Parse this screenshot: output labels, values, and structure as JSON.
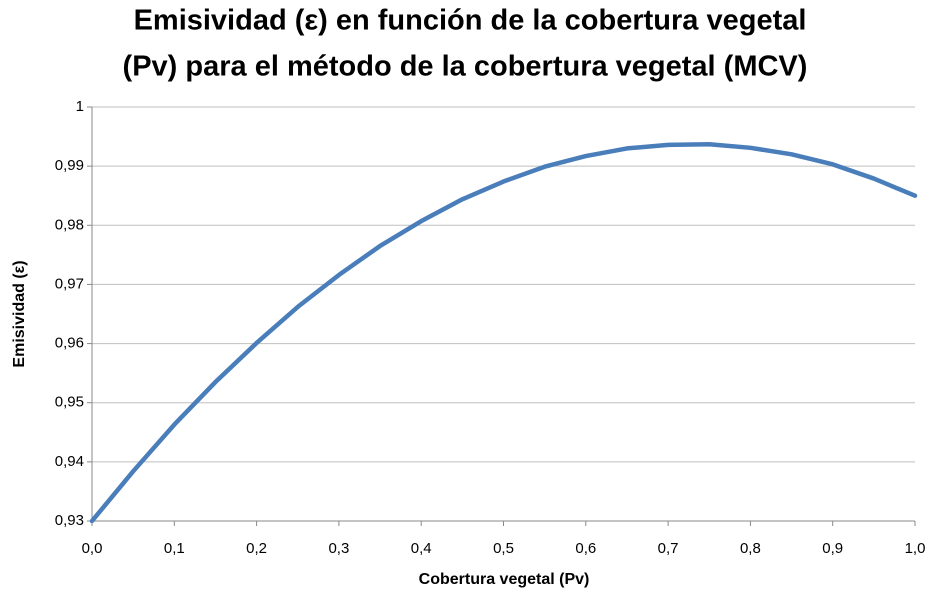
{
  "chart_data": {
    "type": "line",
    "title": [
      "Emisividad (ε) en función de la cobertura vegetal",
      "(Pv) para el método de la cobertura vegetal (MCV)"
    ],
    "xlabel": "Cobertura vegetal (Pv)",
    "ylabel": "Emisividad (ε)",
    "x": [
      0,
      0.05,
      0.1,
      0.15,
      0.2,
      0.25,
      0.3,
      0.35,
      0.4,
      0.45,
      0.5,
      0.55,
      0.6,
      0.65,
      0.7,
      0.75,
      0.8,
      0.85,
      0.9,
      0.95,
      1
    ],
    "series": [
      {
        "name": "Emisividad (ε)",
        "color": "#4a7ebb",
        "values": [
          0.93,
          0.9384,
          0.9463,
          0.9535,
          0.9601,
          0.9662,
          0.9716,
          0.9765,
          0.9807,
          0.9844,
          0.9874,
          0.9899,
          0.9917,
          0.993,
          0.9936,
          0.9937,
          0.9931,
          0.992,
          0.9903,
          0.9879,
          0.985
        ]
      }
    ],
    "xlim": [
      0,
      1
    ],
    "xticks": [
      {
        "value": 0,
        "label": "0,0"
      },
      {
        "value": 0.1,
        "label": "0,1"
      },
      {
        "value": 0.2,
        "label": "0,2"
      },
      {
        "value": 0.3,
        "label": "0,3"
      },
      {
        "value": 0.4,
        "label": "0,4"
      },
      {
        "value": 0.5,
        "label": "0,5"
      },
      {
        "value": 0.6,
        "label": "0,6"
      },
      {
        "value": 0.7,
        "label": "0,7"
      },
      {
        "value": 0.8,
        "label": "0,8"
      },
      {
        "value": 0.9,
        "label": "0,9"
      },
      {
        "value": 1,
        "label": "1,0"
      }
    ],
    "ylim": [
      0.93,
      1
    ],
    "yticks": [
      {
        "value": 0.93,
        "label": "0,93"
      },
      {
        "value": 0.94,
        "label": "0,94"
      },
      {
        "value": 0.95,
        "label": "0,95"
      },
      {
        "value": 0.96,
        "label": "0,96"
      },
      {
        "value": 0.97,
        "label": "0,97"
      },
      {
        "value": 0.98,
        "label": "0,98"
      },
      {
        "value": 0.99,
        "label": "0,99"
      },
      1
    ],
    "grid": true
  }
}
